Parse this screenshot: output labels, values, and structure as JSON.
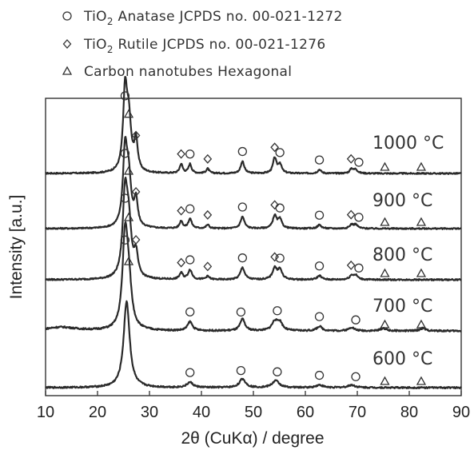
{
  "chart_data": {
    "type": "line",
    "xlabel": "2θ (CuKα) / degree",
    "ylabel": "Intensity [a.u.]",
    "xlim": [
      10,
      90
    ],
    "x_ticks": [
      10,
      20,
      30,
      40,
      50,
      60,
      70,
      80,
      90
    ],
    "grid": false,
    "legend_position": "top",
    "legend": [
      {
        "marker": "circle",
        "prefix": "TiO",
        "subscript": "2",
        "text": " Anatase JCPDS no. 00-021-1272"
      },
      {
        "marker": "diamond",
        "prefix": "TiO",
        "subscript": "2",
        "text": " Rutile JCPDS no. 00-021-1276"
      },
      {
        "marker": "triangle",
        "prefix": "",
        "subscript": "",
        "text": "Carbon nanotubes Hexagonal"
      }
    ],
    "series": [
      {
        "name": "1000 °C",
        "label_main": "1000 ",
        "label_unit": "°C",
        "peaks": [
          [
            25.3,
            1.0,
            0.45
          ],
          [
            26.0,
            0.66,
            0.55
          ],
          [
            27.4,
            0.4,
            0.4
          ],
          [
            36.1,
            0.12,
            0.35
          ],
          [
            37.8,
            0.12,
            0.35
          ],
          [
            41.2,
            0.06,
            0.35
          ],
          [
            47.9,
            0.16,
            0.4
          ],
          [
            54.1,
            0.2,
            0.4
          ],
          [
            55.1,
            0.12,
            0.4
          ],
          [
            62.7,
            0.05,
            0.4
          ],
          [
            68.9,
            0.06,
            0.4
          ],
          [
            69.7,
            0.05,
            0.4
          ]
        ],
        "markers": [
          {
            "x": 25.3,
            "type": "circle"
          },
          {
            "x": 26.0,
            "type": "triangle"
          },
          {
            "x": 27.4,
            "type": "diamond"
          },
          {
            "x": 36.1,
            "type": "diamond"
          },
          {
            "x": 37.8,
            "type": "circle"
          },
          {
            "x": 41.2,
            "type": "diamond"
          },
          {
            "x": 47.9,
            "type": "circle"
          },
          {
            "x": 54.1,
            "type": "diamond"
          },
          {
            "x": 55.1,
            "type": "circle"
          },
          {
            "x": 62.7,
            "type": "circle"
          },
          {
            "x": 68.8,
            "type": "diamond"
          },
          {
            "x": 70.3,
            "type": "circle"
          },
          {
            "x": 75.3,
            "type": "triangle"
          },
          {
            "x": 82.3,
            "type": "triangle"
          }
        ]
      },
      {
        "name": "900 °C",
        "label_main": "900 ",
        "label_unit": "°C",
        "peaks": [
          [
            25.3,
            1.0,
            0.5
          ],
          [
            26.0,
            0.6,
            0.55
          ],
          [
            27.4,
            0.35,
            0.4
          ],
          [
            36.1,
            0.1,
            0.35
          ],
          [
            37.8,
            0.13,
            0.4
          ],
          [
            41.2,
            0.05,
            0.35
          ],
          [
            47.9,
            0.16,
            0.45
          ],
          [
            54.1,
            0.17,
            0.45
          ],
          [
            55.1,
            0.12,
            0.45
          ],
          [
            62.7,
            0.05,
            0.45
          ],
          [
            68.9,
            0.05,
            0.45
          ],
          [
            69.7,
            0.05,
            0.45
          ]
        ],
        "markers": [
          {
            "x": 25.3,
            "type": "circle"
          },
          {
            "x": 26.0,
            "type": "triangle"
          },
          {
            "x": 27.4,
            "type": "diamond"
          },
          {
            "x": 36.1,
            "type": "diamond"
          },
          {
            "x": 37.8,
            "type": "circle"
          },
          {
            "x": 41.2,
            "type": "diamond"
          },
          {
            "x": 47.9,
            "type": "circle"
          },
          {
            "x": 54.1,
            "type": "diamond"
          },
          {
            "x": 55.1,
            "type": "circle"
          },
          {
            "x": 62.7,
            "type": "circle"
          },
          {
            "x": 68.8,
            "type": "diamond"
          },
          {
            "x": 70.3,
            "type": "circle"
          },
          {
            "x": 75.3,
            "type": "triangle"
          },
          {
            "x": 82.3,
            "type": "triangle"
          }
        ]
      },
      {
        "name": "800 °C",
        "label_main": "800 ",
        "label_unit": "°C",
        "peaks": [
          [
            25.3,
            1.0,
            0.55
          ],
          [
            26.0,
            0.6,
            0.6
          ],
          [
            27.4,
            0.28,
            0.45
          ],
          [
            36.1,
            0.08,
            0.4
          ],
          [
            37.8,
            0.12,
            0.45
          ],
          [
            41.2,
            0.04,
            0.4
          ],
          [
            47.9,
            0.15,
            0.5
          ],
          [
            54.1,
            0.14,
            0.5
          ],
          [
            55.1,
            0.12,
            0.5
          ],
          [
            62.7,
            0.05,
            0.5
          ],
          [
            68.9,
            0.05,
            0.5
          ],
          [
            69.7,
            0.05,
            0.5
          ]
        ],
        "markers": [
          {
            "x": 25.3,
            "type": "circle"
          },
          {
            "x": 26.0,
            "type": "triangle"
          },
          {
            "x": 27.4,
            "type": "diamond"
          },
          {
            "x": 36.1,
            "type": "diamond"
          },
          {
            "x": 37.8,
            "type": "circle"
          },
          {
            "x": 41.2,
            "type": "diamond"
          },
          {
            "x": 47.9,
            "type": "circle"
          },
          {
            "x": 54.1,
            "type": "diamond"
          },
          {
            "x": 55.1,
            "type": "circle"
          },
          {
            "x": 62.7,
            "type": "circle"
          },
          {
            "x": 68.8,
            "type": "diamond"
          },
          {
            "x": 70.3,
            "type": "circle"
          },
          {
            "x": 75.3,
            "type": "triangle"
          },
          {
            "x": 82.3,
            "type": "triangle"
          }
        ]
      },
      {
        "name": "700 °C",
        "label_main": "700 ",
        "label_unit": "°C",
        "peaks": [
          [
            25.3,
            1.0,
            0.6
          ],
          [
            26.0,
            0.45,
            0.65
          ],
          [
            37.8,
            0.1,
            0.55
          ],
          [
            47.9,
            0.13,
            0.55
          ],
          [
            54.1,
            0.1,
            0.65
          ],
          [
            55.1,
            0.09,
            0.6
          ],
          [
            62.7,
            0.05,
            0.6
          ],
          [
            68.9,
            0.04,
            0.6
          ],
          [
            75.0,
            0.03,
            0.6
          ],
          [
            82.6,
            0.03,
            0.6
          ],
          [
            13.0,
            0.04,
            3.5
          ]
        ],
        "markers": [
          {
            "x": 25.3,
            "type": "circle"
          },
          {
            "x": 26.0,
            "type": "triangle"
          },
          {
            "x": 37.8,
            "type": "circle"
          },
          {
            "x": 47.6,
            "type": "circle"
          },
          {
            "x": 54.6,
            "type": "circle"
          },
          {
            "x": 62.7,
            "type": "circle"
          },
          {
            "x": 69.7,
            "type": "circle"
          },
          {
            "x": 75.3,
            "type": "triangle"
          },
          {
            "x": 82.3,
            "type": "triangle"
          }
        ]
      },
      {
        "name": "600 °C",
        "label_main": "600 ",
        "label_unit": "°C",
        "peaks": [
          [
            25.6,
            1.0,
            0.7
          ],
          [
            37.8,
            0.06,
            0.7
          ],
          [
            47.9,
            0.1,
            0.7
          ],
          [
            54.3,
            0.08,
            0.8
          ],
          [
            62.7,
            0.03,
            0.8
          ],
          [
            68.9,
            0.03,
            0.8
          ]
        ],
        "markers": [
          {
            "x": 37.8,
            "type": "circle"
          },
          {
            "x": 47.6,
            "type": "circle"
          },
          {
            "x": 54.6,
            "type": "circle"
          },
          {
            "x": 62.7,
            "type": "circle"
          },
          {
            "x": 69.7,
            "type": "circle"
          },
          {
            "x": 75.3,
            "type": "triangle"
          },
          {
            "x": 82.3,
            "type": "triangle"
          }
        ]
      }
    ]
  }
}
